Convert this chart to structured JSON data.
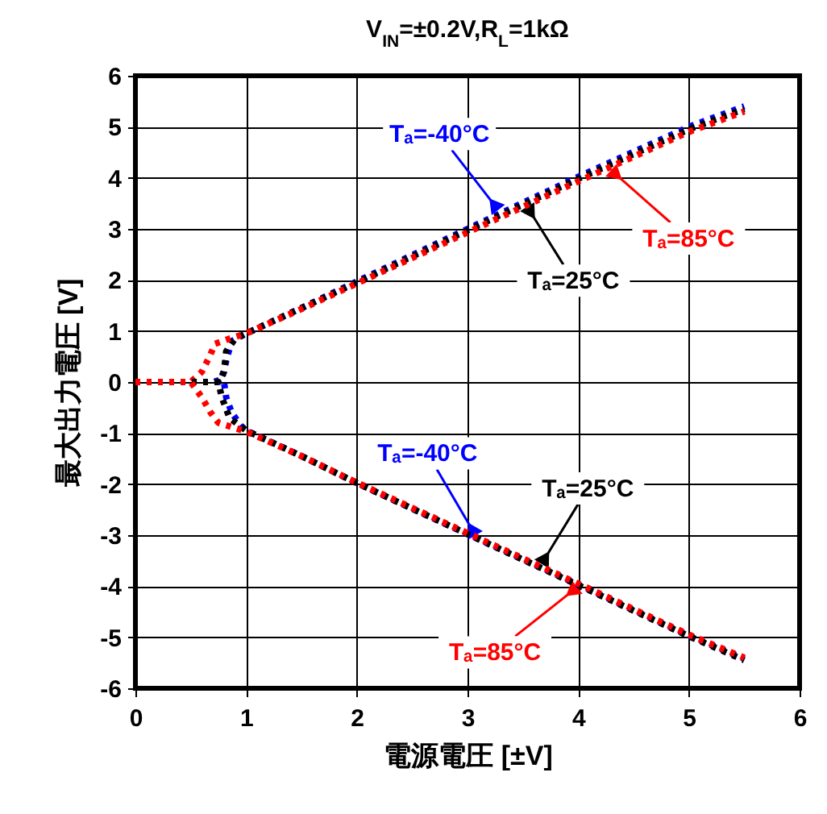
{
  "chart_data": {
    "type": "line",
    "title": "V$_{IN}$=±0.2V,R$_{L}$=1kΩ",
    "xlabel": "電源電圧 [±V]",
    "ylabel": "最大出力電圧 [V]",
    "xlim": [
      0,
      6
    ],
    "ylim": [
      -6,
      6
    ],
    "xticks": [
      0,
      1,
      2,
      3,
      4,
      5,
      6
    ],
    "yticks": [
      -6,
      -5,
      -4,
      -3,
      -2,
      -1,
      0,
      1,
      2,
      3,
      4,
      5,
      6
    ],
    "grid": true,
    "line_style": "dotted",
    "series": [
      {
        "color": "#0000ff",
        "x": [
          0,
          0.7,
          0.78,
          0.83,
          0.87,
          1,
          1.5,
          2,
          3,
          4,
          5,
          5.5
        ],
        "values": [
          0,
          0,
          0.05,
          0.5,
          0.8,
          0.95,
          1.45,
          1.97,
          3,
          4.02,
          5,
          5.4
        ]
      },
      {
        "color": "#000000",
        "x": [
          0,
          0.75,
          0.8,
          0.82,
          0.9,
          1,
          1.5,
          2,
          3,
          4,
          5,
          5.5
        ],
        "values": [
          0,
          0,
          0.2,
          0.6,
          0.85,
          0.95,
          1.45,
          1.95,
          2.97,
          3.98,
          4.95,
          5.35
        ]
      },
      {
        "color": "#ff0000",
        "x": [
          0,
          0.5,
          0.6,
          0.67,
          0.72,
          0.85,
          1,
          1.5,
          2,
          3,
          4,
          5,
          5.5
        ],
        "values": [
          0,
          0,
          0.2,
          0.5,
          0.75,
          0.85,
          0.95,
          1.43,
          1.93,
          2.93,
          3.93,
          4.9,
          5.3
        ]
      },
      {
        "color": "#0000ff",
        "x": [
          0,
          0.8,
          0.82,
          0.87,
          0.95,
          1,
          1.5,
          2,
          3,
          4,
          5,
          5.5
        ],
        "values": [
          0,
          0,
          -0.3,
          -0.6,
          -0.85,
          -0.95,
          -1.45,
          -1.98,
          -2.98,
          -3.97,
          -4.97,
          -5.42
        ]
      },
      {
        "color": "#000000",
        "x": [
          0,
          0.75,
          0.78,
          0.85,
          1,
          1.5,
          2,
          3,
          4,
          5,
          5.5
        ],
        "values": [
          0,
          0,
          -0.3,
          -0.7,
          -0.95,
          -1.45,
          -1.98,
          -2.98,
          -3.98,
          -4.98,
          -5.45
        ]
      },
      {
        "color": "#ff0000",
        "x": [
          0,
          0.5,
          0.6,
          0.68,
          0.75,
          1,
          1.5,
          2,
          3,
          4,
          5,
          5.5
        ],
        "values": [
          0,
          0,
          -0.3,
          -0.6,
          -0.8,
          -0.97,
          -1.45,
          -1.97,
          -2.96,
          -3.95,
          -4.95,
          -5.4
        ]
      }
    ],
    "annotations": [
      {
        "text": "Tₐ=-40°C",
        "x": 3.3,
        "y": 3.31
      },
      {
        "text": "Tₐ=25°C",
        "x": 3.52,
        "y": 3.5
      },
      {
        "text": "Tₐ=85°C",
        "x": 4.27,
        "y": 4.2
      },
      {
        "text": "Tₐ=-40°C",
        "x": 3.09,
        "y": -3.07
      },
      {
        "text": "Tₐ=25°C",
        "x": 3.65,
        "y": -3.63
      },
      {
        "text": "Tₐ=85°C",
        "x": 4.02,
        "y": -3.97
      }
    ]
  }
}
